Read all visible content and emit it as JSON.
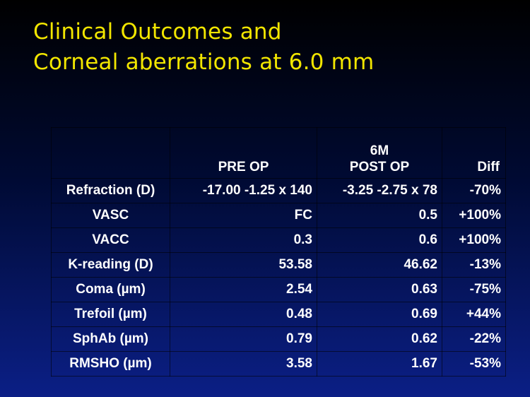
{
  "title": {
    "line1": "Clinical Outcomes and",
    "line2": "Corneal aberrations at 6.0 mm"
  },
  "table": {
    "headers": {
      "label": "",
      "pre_op": "PRE OP",
      "post_op_line1": "6M",
      "post_op_line2": "POST OP",
      "diff": "Diff"
    },
    "rows": [
      {
        "label": "Refraction (D)",
        "pre_op": "-17.00 -1.25 x 140",
        "post_op": "-3.25 -2.75 x 78",
        "diff": "-70%"
      },
      {
        "label": "VASC",
        "pre_op": "FC",
        "post_op": "0.5",
        "diff": "+100%"
      },
      {
        "label": "VACC",
        "pre_op": "0.3",
        "post_op": "0.6",
        "diff": "+100%"
      },
      {
        "label": "K-reading (D)",
        "pre_op": "53.58",
        "post_op": "46.62",
        "diff": "-13%"
      },
      {
        "label": "Coma (µm)",
        "pre_op": "2.54",
        "post_op": "0.63",
        "diff": "-75%"
      },
      {
        "label": "Trefoil (µm)",
        "pre_op": "0.48",
        "post_op": "0.69",
        "diff": "+44%"
      },
      {
        "label": "SphAb (µm)",
        "pre_op": "0.79",
        "post_op": "0.62",
        "diff": "-22%"
      },
      {
        "label": "RMSHO (µm)",
        "pre_op": "3.58",
        "post_op": "1.67",
        "diff": "-53%"
      }
    ]
  },
  "colors": {
    "title": "#f2e600",
    "text": "#ffffff",
    "background_top": "#000000",
    "background_bottom": "#0b1f86"
  }
}
